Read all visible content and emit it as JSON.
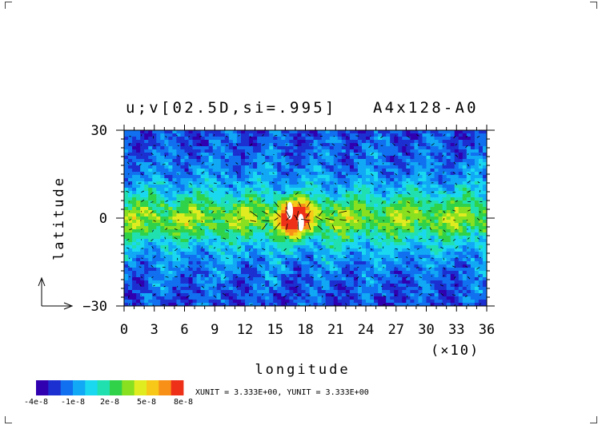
{
  "chart_data": {
    "type": "heatmap",
    "title": "u;v[02.5D,si=.995]",
    "subtitle": "A4x128-A0",
    "xlabel": "longitude",
    "ylabel": "latitude",
    "x_multiplier_label": "(×10)",
    "xlim": [
      0,
      36
    ],
    "ylim": [
      -30,
      30
    ],
    "x_ticks": [
      "0",
      "3",
      "6",
      "9",
      "12",
      "15",
      "18",
      "21",
      "24",
      "27",
      "30",
      "33",
      "36"
    ],
    "x_tick_values": [
      0,
      3,
      6,
      9,
      12,
      15,
      18,
      21,
      24,
      27,
      30,
      33,
      36
    ],
    "y_ticks": [
      "-30",
      "0",
      "30"
    ],
    "y_tick_values": [
      -30,
      0,
      30
    ],
    "color_levels": [
      {
        "value": -4e-08,
        "color": "#3000b0"
      },
      {
        "value": -3e-08,
        "color": "#1c2fd0"
      },
      {
        "value": -2e-08,
        "color": "#1070f0"
      },
      {
        "value": -1e-08,
        "color": "#11a8f5"
      },
      {
        "value": 0,
        "color": "#1ad8f0"
      },
      {
        "value": 1e-08,
        "color": "#20e0b0"
      },
      {
        "value": 2e-08,
        "color": "#30d24a"
      },
      {
        "value": 3e-08,
        "color": "#88e020"
      },
      {
        "value": 4e-08,
        "color": "#e0ec20"
      },
      {
        "value": 5e-08,
        "color": "#f8c818"
      },
      {
        "value": 6e-08,
        "color": "#f89018"
      },
      {
        "value": 7e-08,
        "color": "#ee3018"
      }
    ],
    "colorbar_labels": [
      "-4e-8",
      "-1e-8",
      "2e-8",
      "5e-8",
      "8e-8"
    ],
    "colorbar_label_values": [
      -4e-08,
      -1e-08,
      2e-08,
      5e-08,
      8e-08
    ],
    "vector_unit_text": "XUNIT = 3.333E+00, YUNIT = 3.333E+00",
    "features": {
      "equatorial_maximum_band_lat": [
        -12,
        12
      ],
      "convective_center": {
        "lon": 17,
        "lat": 0
      },
      "subtropical_minimum_lat": [
        15,
        30
      ]
    }
  }
}
